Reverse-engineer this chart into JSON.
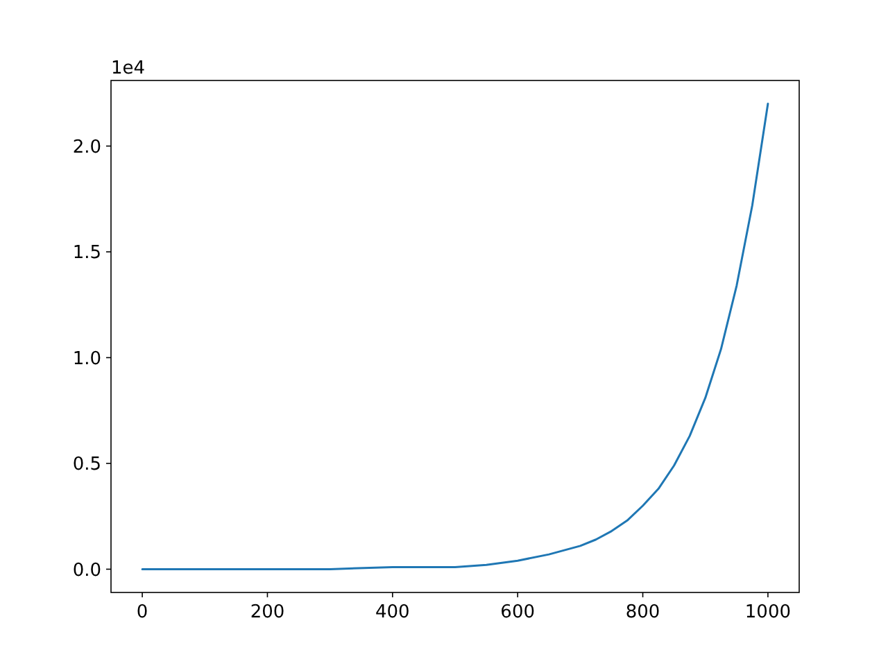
{
  "chart_data": {
    "type": "line",
    "x": [
      0,
      100,
      200,
      300,
      400,
      450,
      500,
      550,
      600,
      650,
      700,
      725,
      750,
      775,
      800,
      825,
      850,
      875,
      900,
      925,
      950,
      975,
      1000
    ],
    "series": [
      {
        "color": "#1f77b4",
        "values": [
          0,
          0,
          0,
          0,
          0.01,
          0.01,
          0.01,
          0.02,
          0.04,
          0.07,
          0.11,
          0.14,
          0.18,
          0.23,
          0.3,
          0.38,
          0.49,
          0.63,
          0.81,
          1.04,
          1.34,
          1.72,
          2.2
        ]
      }
    ],
    "xlim": [
      -50,
      1050
    ],
    "ylim": [
      -0.11,
      2.31
    ],
    "xticks": [
      0,
      200,
      400,
      600,
      800,
      1000
    ],
    "yticks": [
      {
        "value": 0,
        "label": "0.0"
      },
      0.5,
      {
        "value": 1,
        "label": "1.0"
      },
      1.5,
      {
        "value": 2,
        "label": "2.0"
      }
    ],
    "annotations": [
      "1e4"
    ],
    "marker": "none",
    "line_style": "solid"
  }
}
